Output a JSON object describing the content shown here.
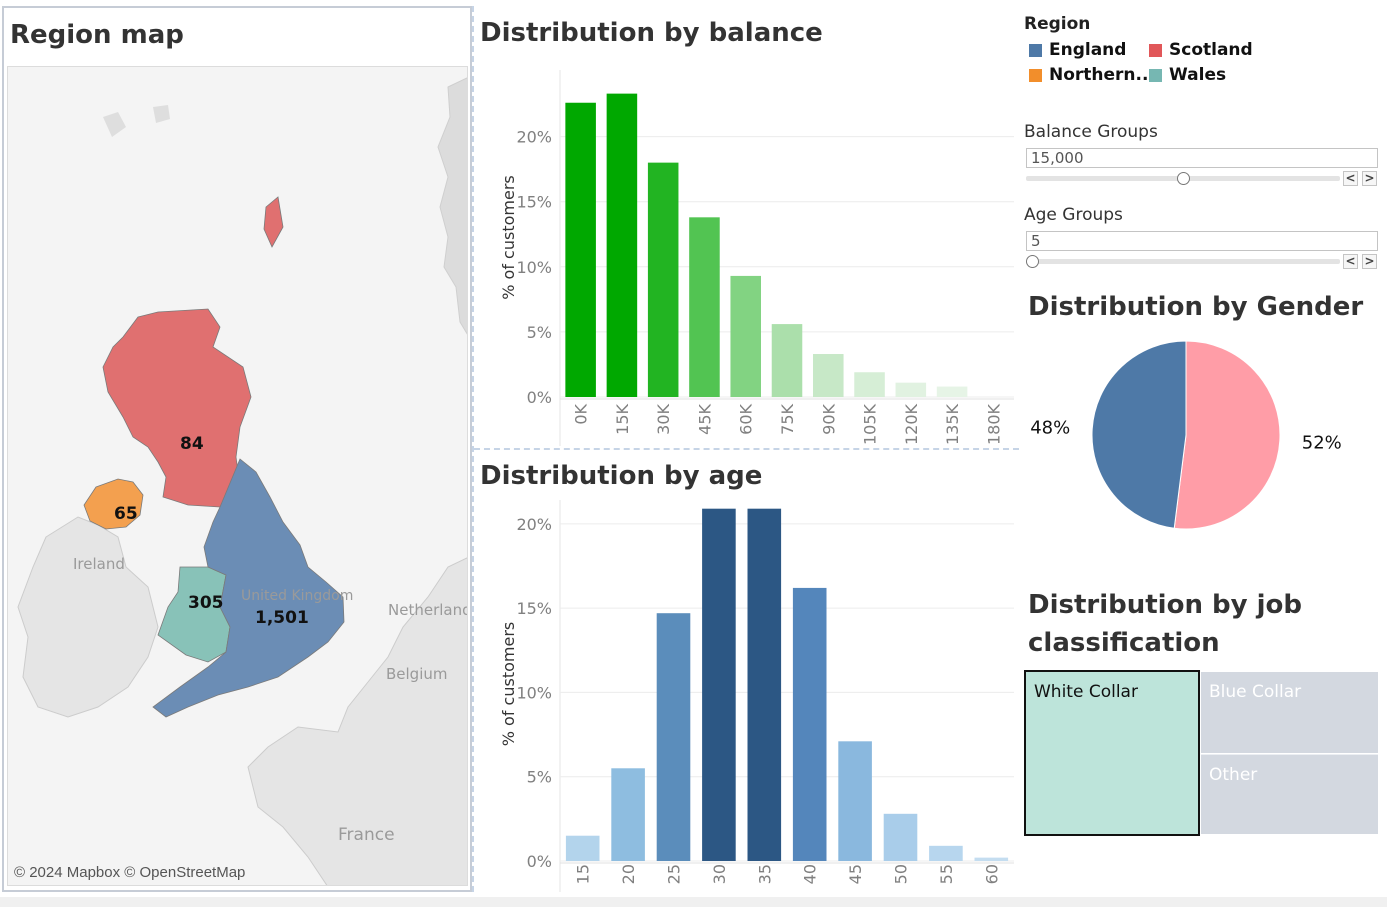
{
  "region_map": {
    "title": "Region map",
    "credit": "© 2024 Mapbox © OpenStreetMap",
    "places": [
      "Ireland",
      "United Kingdom",
      "Netherlands",
      "Belgium",
      "France"
    ],
    "regions": [
      {
        "name": "Scotland",
        "value": "84",
        "color": "#e07070"
      },
      {
        "name": "Northern Ireland",
        "value": "65",
        "color": "#f3a04f"
      },
      {
        "name": "Wales",
        "value": "305",
        "color": "#88c2b8"
      },
      {
        "name": "England",
        "value": "1,501",
        "color": "#6b8db5"
      }
    ]
  },
  "chart_data": [
    {
      "type": "bar",
      "title": "Distribution by balance",
      "ylabel": "% of customers",
      "xlabel": "",
      "categories": [
        "0K",
        "15K",
        "30K",
        "45K",
        "60K",
        "75K",
        "90K",
        "105K",
        "120K",
        "135K",
        "180K"
      ],
      "values": [
        22.6,
        23.3,
        18.0,
        13.8,
        9.3,
        5.6,
        3.3,
        1.9,
        1.1,
        0.8,
        0.0
      ],
      "colors": [
        "#00a800",
        "#00a800",
        "#22b422",
        "#52c452",
        "#82d382",
        "#abdfab",
        "#c7e8c7",
        "#d6eed6",
        "#e1f2e1",
        "#e6f4e6",
        "#ffffff"
      ],
      "yticks": [
        "0%",
        "5%",
        "10%",
        "15%",
        "20%"
      ],
      "ylim": [
        0,
        24.5
      ],
      "grid": true
    },
    {
      "type": "bar",
      "title": "Distribution by age",
      "ylabel": "% of customers",
      "xlabel": "",
      "categories": [
        "15",
        "20",
        "25",
        "30",
        "35",
        "40",
        "45",
        "50",
        "55",
        "60"
      ],
      "values": [
        1.5,
        5.5,
        14.7,
        20.9,
        20.9,
        16.2,
        7.1,
        2.8,
        0.9,
        0.2
      ],
      "colors": [
        "#b3d4ec",
        "#8ebde0",
        "#5b8dbb",
        "#2c5784",
        "#2c5784",
        "#5486bb",
        "#8ab8de",
        "#a9cdea",
        "#b7d6ee",
        "#c4ddf0"
      ],
      "yticks": [
        "0%",
        "5%",
        "10%",
        "15%",
        "20%"
      ],
      "ylim": [
        0,
        21.0
      ],
      "grid": true
    },
    {
      "type": "pie",
      "title": "Distribution by Gender",
      "slices": [
        {
          "label": "48%",
          "value": 48,
          "color": "#4e79a7"
        },
        {
          "label": "52%",
          "value": 52,
          "color": "#ff9da7"
        }
      ]
    },
    {
      "type": "treemap",
      "title": "Distribution by job classification",
      "cells": [
        {
          "label": "White Collar",
          "color": "#bde4da",
          "text_color": "#111111",
          "selected": true
        },
        {
          "label": "Blue Collar",
          "color": "#d3d8e0",
          "text_color": "#ffffff",
          "selected": false
        },
        {
          "label": "Other",
          "color": "#d3d8e0",
          "text_color": "#ffffff",
          "selected": false
        }
      ]
    }
  ],
  "legend": {
    "title": "Region",
    "items": [
      {
        "label": "England",
        "color": "#4e79a7"
      },
      {
        "label": "Scotland",
        "color": "#e15759"
      },
      {
        "label": "Northern..",
        "color": "#f28e2b"
      },
      {
        "label": "Wales",
        "color": "#76b7b2"
      }
    ]
  },
  "params": {
    "balance": {
      "label": "Balance Groups",
      "value": "15,000",
      "position": 0.5
    },
    "age": {
      "label": "Age Groups",
      "value": "5",
      "position": 0.0
    }
  },
  "stepper": {
    "prev": "<",
    "next": ">"
  }
}
